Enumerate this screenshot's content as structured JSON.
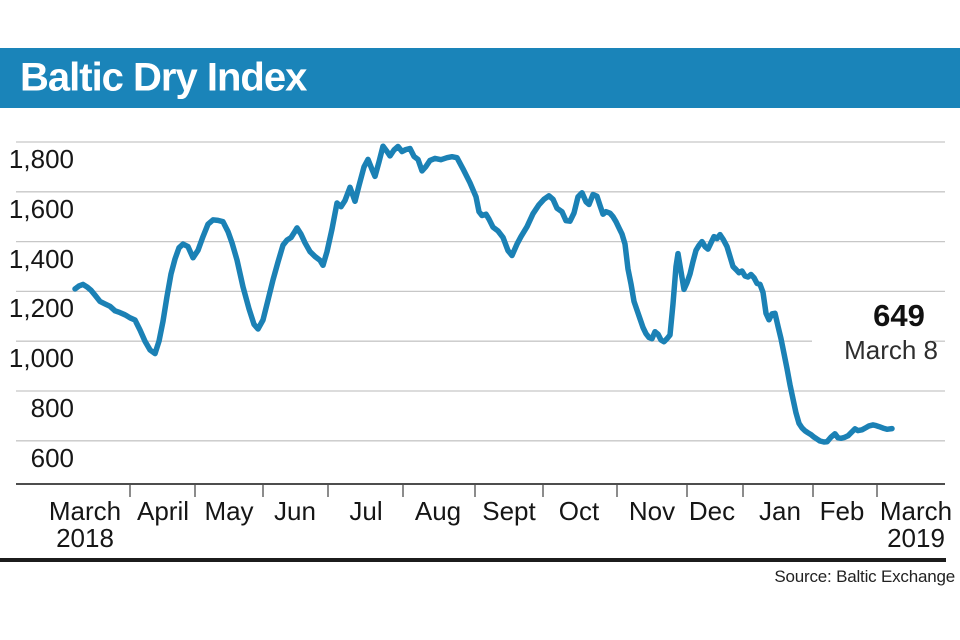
{
  "header": {
    "title": "Baltic Dry Index",
    "bg_color": "#1a84b9",
    "text_color": "#ffffff"
  },
  "source": {
    "label": "Source: Baltic Exchange"
  },
  "chart_data": {
    "type": "line",
    "title": "Baltic Dry Index",
    "xlabel": "",
    "ylabel": "",
    "ylim": [
      600,
      1800
    ],
    "grid": true,
    "grid_color": "#c7c7c7",
    "axis_color": "#4d4d4d",
    "line_color": "#1b81b5",
    "y_ticks": [
      1800,
      1600,
      1400,
      1200,
      1000,
      800,
      600
    ],
    "y_tick_labels": [
      "1,800",
      "1,600",
      "1,400",
      "1,200",
      "1,000",
      "800",
      "600"
    ],
    "months": [
      {
        "label": "March",
        "sub": "2018"
      },
      {
        "label": "April",
        "sub": ""
      },
      {
        "label": "May",
        "sub": ""
      },
      {
        "label": "Jun",
        "sub": ""
      },
      {
        "label": "Jul",
        "sub": ""
      },
      {
        "label": "Aug",
        "sub": ""
      },
      {
        "label": "Sept",
        "sub": ""
      },
      {
        "label": "Oct",
        "sub": ""
      },
      {
        "label": "Nov",
        "sub": ""
      },
      {
        "label": "Dec",
        "sub": ""
      },
      {
        "label": "Jan",
        "sub": ""
      },
      {
        "label": "Feb",
        "sub": ""
      },
      {
        "label": "March",
        "sub": "2019"
      }
    ],
    "annotation": {
      "value": "649",
      "date": "March 8"
    },
    "series": [
      {
        "name": "Baltic Dry Index",
        "x_unit": "px",
        "v_unit": "index points",
        "points": [
          [
            75,
            1210
          ],
          [
            79,
            1222
          ],
          [
            83,
            1228
          ],
          [
            87,
            1218
          ],
          [
            91,
            1205
          ],
          [
            95,
            1185
          ],
          [
            100,
            1160
          ],
          [
            105,
            1150
          ],
          [
            110,
            1140
          ],
          [
            115,
            1122
          ],
          [
            120,
            1115
          ],
          [
            125,
            1106
          ],
          [
            130,
            1094
          ],
          [
            135,
            1085
          ],
          [
            140,
            1045
          ],
          [
            145,
            1000
          ],
          [
            150,
            965
          ],
          [
            155,
            950
          ],
          [
            159,
            1000
          ],
          [
            163,
            1080
          ],
          [
            167,
            1180
          ],
          [
            171,
            1270
          ],
          [
            175,
            1330
          ],
          [
            179,
            1375
          ],
          [
            183,
            1390
          ],
          [
            188,
            1380
          ],
          [
            193,
            1335
          ],
          [
            198,
            1365
          ],
          [
            203,
            1420
          ],
          [
            208,
            1470
          ],
          [
            213,
            1487
          ],
          [
            218,
            1485
          ],
          [
            223,
            1480
          ],
          [
            228,
            1440
          ],
          [
            232,
            1395
          ],
          [
            237,
            1326
          ],
          [
            243,
            1218
          ],
          [
            249,
            1130
          ],
          [
            254,
            1068
          ],
          [
            258,
            1049
          ],
          [
            263,
            1085
          ],
          [
            268,
            1165
          ],
          [
            273,
            1246
          ],
          [
            278,
            1318
          ],
          [
            283,
            1386
          ],
          [
            287,
            1406
          ],
          [
            291,
            1416
          ],
          [
            294,
            1435
          ],
          [
            297,
            1455
          ],
          [
            301,
            1430
          ],
          [
            305,
            1395
          ],
          [
            310,
            1360
          ],
          [
            315,
            1340
          ],
          [
            320,
            1325
          ],
          [
            323,
            1305
          ],
          [
            327,
            1360
          ],
          [
            332,
            1450
          ],
          [
            337,
            1555
          ],
          [
            341,
            1540
          ],
          [
            345,
            1565
          ],
          [
            350,
            1618
          ],
          [
            355,
            1562
          ],
          [
            359,
            1625
          ],
          [
            364,
            1700
          ],
          [
            368,
            1730
          ],
          [
            372,
            1690
          ],
          [
            375,
            1662
          ],
          [
            379,
            1720
          ],
          [
            383,
            1783
          ],
          [
            387,
            1762
          ],
          [
            390,
            1744
          ],
          [
            394,
            1768
          ],
          [
            398,
            1782
          ],
          [
            402,
            1762
          ],
          [
            406,
            1770
          ],
          [
            410,
            1774
          ],
          [
            414,
            1742
          ],
          [
            418,
            1730
          ],
          [
            422,
            1684
          ],
          [
            426,
            1702
          ],
          [
            430,
            1726
          ],
          [
            435,
            1734
          ],
          [
            441,
            1729
          ],
          [
            447,
            1737
          ],
          [
            452,
            1741
          ],
          [
            457,
            1737
          ],
          [
            463,
            1692
          ],
          [
            470,
            1636
          ],
          [
            476,
            1580
          ],
          [
            479,
            1520
          ],
          [
            482,
            1505
          ],
          [
            486,
            1510
          ],
          [
            489,
            1490
          ],
          [
            493,
            1458
          ],
          [
            498,
            1443
          ],
          [
            503,
            1417
          ],
          [
            508,
            1364
          ],
          [
            512,
            1344
          ],
          [
            517,
            1390
          ],
          [
            521,
            1420
          ],
          [
            527,
            1460
          ],
          [
            533,
            1512
          ],
          [
            539,
            1548
          ],
          [
            544,
            1570
          ],
          [
            549,
            1584
          ],
          [
            553,
            1570
          ],
          [
            557,
            1534
          ],
          [
            562,
            1520
          ],
          [
            566,
            1484
          ],
          [
            570,
            1482
          ],
          [
            574,
            1515
          ],
          [
            578,
            1580
          ],
          [
            582,
            1596
          ],
          [
            586,
            1560
          ],
          [
            589,
            1549
          ],
          [
            593,
            1589
          ],
          [
            597,
            1582
          ],
          [
            600,
            1545
          ],
          [
            603,
            1510
          ],
          [
            606,
            1520
          ],
          [
            610,
            1514
          ],
          [
            613,
            1500
          ],
          [
            616,
            1480
          ],
          [
            619,
            1455
          ],
          [
            622,
            1430
          ],
          [
            625,
            1390
          ],
          [
            628,
            1290
          ],
          [
            631,
            1230
          ],
          [
            634,
            1160
          ],
          [
            637,
            1125
          ],
          [
            640,
            1090
          ],
          [
            643,
            1055
          ],
          [
            646,
            1030
          ],
          [
            649,
            1015
          ],
          [
            652,
            1010
          ],
          [
            655,
            1038
          ],
          [
            658,
            1028
          ],
          [
            661,
            1005
          ],
          [
            664,
            998
          ],
          [
            667,
            1010
          ],
          [
            670,
            1025
          ],
          [
            673,
            1150
          ],
          [
            676,
            1300
          ],
          [
            678,
            1352
          ],
          [
            681,
            1280
          ],
          [
            684,
            1208
          ],
          [
            687,
            1235
          ],
          [
            690,
            1270
          ],
          [
            693,
            1320
          ],
          [
            696,
            1365
          ],
          [
            699,
            1385
          ],
          [
            702,
            1400
          ],
          [
            705,
            1380
          ],
          [
            708,
            1370
          ],
          [
            711,
            1395
          ],
          [
            714,
            1420
          ],
          [
            717,
            1412
          ],
          [
            720,
            1428
          ],
          [
            723,
            1410
          ],
          [
            727,
            1380
          ],
          [
            730,
            1340
          ],
          [
            733,
            1300
          ],
          [
            736,
            1288
          ],
          [
            739,
            1275
          ],
          [
            742,
            1282
          ],
          [
            745,
            1262
          ],
          [
            748,
            1258
          ],
          [
            751,
            1268
          ],
          [
            754,
            1255
          ],
          [
            757,
            1232
          ],
          [
            760,
            1228
          ],
          [
            763,
            1196
          ],
          [
            766,
            1112
          ],
          [
            769,
            1086
          ],
          [
            772,
            1110
          ],
          [
            775,
            1112
          ],
          [
            778,
            1060
          ],
          [
            781,
            1010
          ],
          [
            784,
            950
          ],
          [
            787,
            890
          ],
          [
            790,
            825
          ],
          [
            793,
            768
          ],
          [
            796,
            712
          ],
          [
            799,
            670
          ],
          [
            802,
            652
          ],
          [
            805,
            640
          ],
          [
            808,
            632
          ],
          [
            811,
            625
          ],
          [
            814,
            615
          ],
          [
            817,
            607
          ],
          [
            820,
            599
          ],
          [
            824,
            595
          ],
          [
            827,
            596
          ],
          [
            831,
            615
          ],
          [
            835,
            628
          ],
          [
            838,
            612
          ],
          [
            841,
            610
          ],
          [
            844,
            613
          ],
          [
            848,
            620
          ],
          [
            852,
            636
          ],
          [
            855,
            648
          ],
          [
            858,
            641
          ],
          [
            862,
            644
          ],
          [
            866,
            653
          ],
          [
            869,
            660
          ],
          [
            873,
            664
          ],
          [
            876,
            661
          ],
          [
            879,
            657
          ],
          [
            883,
            651
          ],
          [
            887,
            646
          ],
          [
            892,
            649
          ]
        ]
      }
    ]
  }
}
